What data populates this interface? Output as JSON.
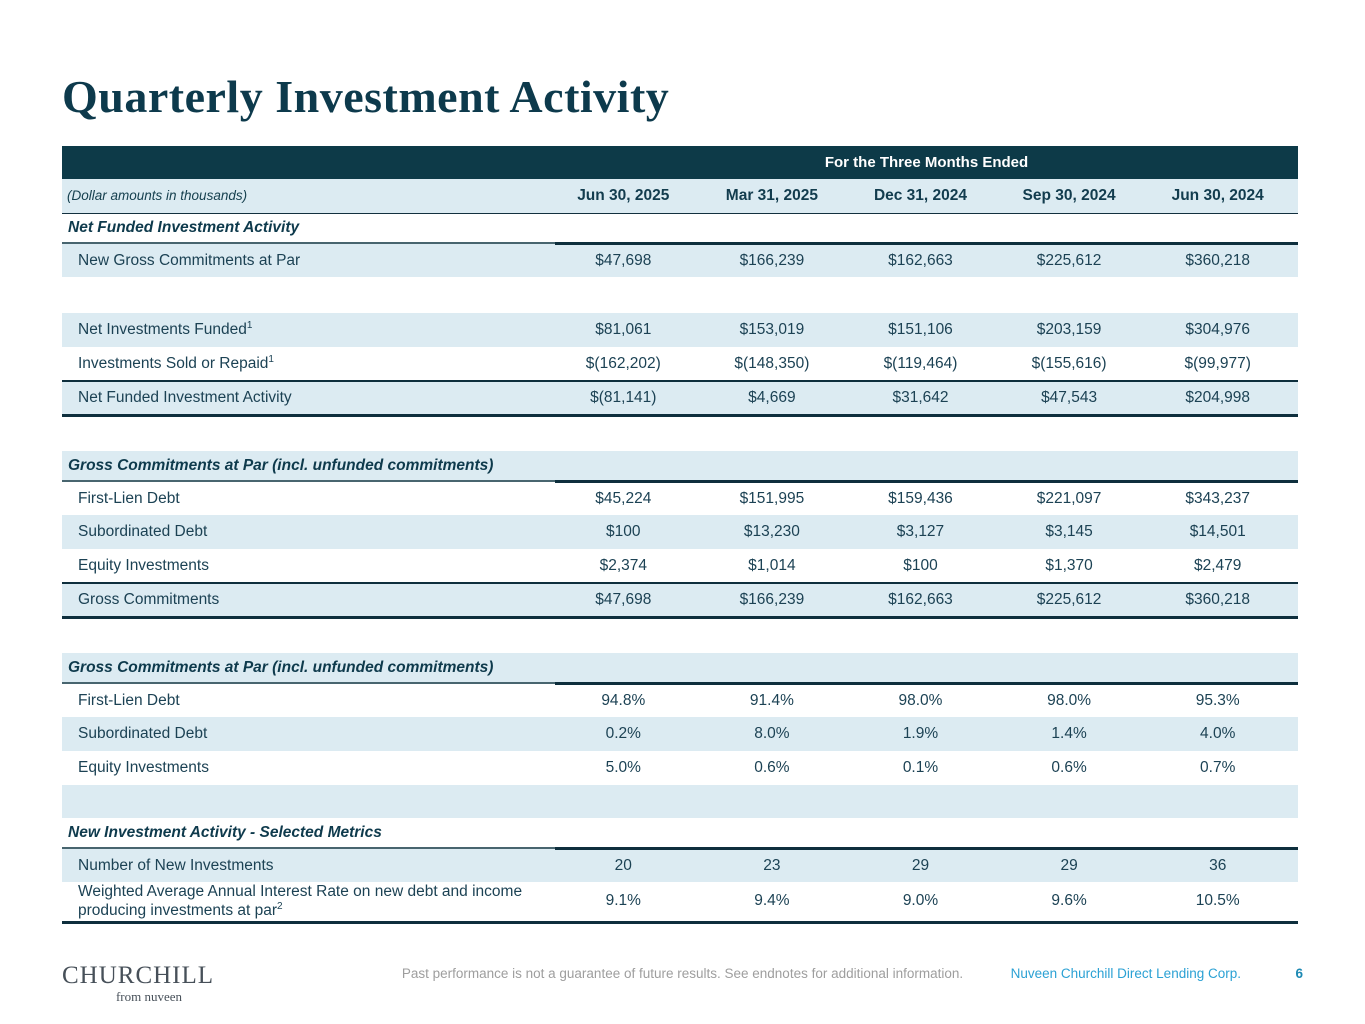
{
  "title": "Quarterly Investment Activity",
  "colors": {
    "accent_dark": "#0d3a48",
    "row_shade": "#dcebf2",
    "text_dark": "#1c4254",
    "company_link": "#2ba1d4",
    "page_number": "#1c89b3"
  },
  "table": {
    "top_header": "For the Three Months Ended",
    "label_note": "(Dollar amounts in thousands)",
    "columns": [
      "Jun 30, 2025",
      "Mar 31, 2025",
      "Dec 31, 2024",
      "Sep 30, 2024",
      "Jun 30, 2024"
    ],
    "rows": [
      {
        "type": "section",
        "label": "Net Funded Investment Activity"
      },
      {
        "type": "data",
        "shade": true,
        "label": "New Gross Commitments at Par",
        "values": [
          "$47,698",
          "$166,239",
          "$162,663",
          "$225,612",
          "$360,218"
        ]
      },
      {
        "type": "gap"
      },
      {
        "type": "data",
        "shade": true,
        "label": "Net Investments Funded",
        "sup": "1",
        "values": [
          "$81,061",
          "$153,019",
          "$151,106",
          "$203,159",
          "$304,976"
        ]
      },
      {
        "type": "data",
        "shade": false,
        "label": "Investments Sold or Repaid",
        "sup": "1",
        "values": [
          "$(162,202)",
          "$(148,350)",
          "$(119,464)",
          "$(155,616)",
          "$(99,977)"
        ]
      },
      {
        "type": "total",
        "label": "Net Funded Investment Activity",
        "values": [
          "$(81,141)",
          "$4,669",
          "$31,642",
          "$47,543",
          "$204,998"
        ]
      },
      {
        "type": "gap"
      },
      {
        "type": "section",
        "shade": true,
        "label": "Gross Commitments at Par (incl. unfunded commitments)"
      },
      {
        "type": "data",
        "shade": false,
        "label": "First-Lien Debt",
        "values": [
          "$45,224",
          "$151,995",
          "$159,436",
          "$221,097",
          "$343,237"
        ]
      },
      {
        "type": "data",
        "shade": true,
        "label": "Subordinated Debt",
        "values": [
          "$100",
          "$13,230",
          "$3,127",
          "$3,145",
          "$14,501"
        ]
      },
      {
        "type": "data",
        "shade": false,
        "label": "Equity Investments",
        "values": [
          "$2,374",
          "$1,014",
          "$100",
          "$1,370",
          "$2,479"
        ]
      },
      {
        "type": "total",
        "label": "Gross Commitments",
        "values": [
          "$47,698",
          "$166,239",
          "$162,663",
          "$225,612",
          "$360,218"
        ]
      },
      {
        "type": "gap"
      },
      {
        "type": "section",
        "shade": true,
        "label": "Gross Commitments at Par (incl. unfunded commitments)"
      },
      {
        "type": "data",
        "shade": false,
        "label": "First-Lien Debt",
        "values": [
          "94.8%",
          "91.4%",
          "98.0%",
          "98.0%",
          "95.3%"
        ]
      },
      {
        "type": "data",
        "shade": true,
        "label": "Subordinated Debt",
        "values": [
          "0.2%",
          "8.0%",
          "1.9%",
          "1.4%",
          "4.0%"
        ]
      },
      {
        "type": "data",
        "shade": false,
        "label": "Equity Investments",
        "values": [
          "5.0%",
          "0.6%",
          "0.1%",
          "0.6%",
          "0.7%"
        ]
      },
      {
        "type": "gap",
        "shade": true
      },
      {
        "type": "section",
        "label": "New Investment Activity - Selected Metrics"
      },
      {
        "type": "data",
        "shade": true,
        "label": "Number of New Investments",
        "values": [
          "20",
          "23",
          "29",
          "29",
          "36"
        ]
      },
      {
        "type": "data",
        "shade": false,
        "last": true,
        "label": "Weighted Average Annual Interest Rate on new debt and income producing investments at par",
        "sup": "2",
        "values": [
          "9.1%",
          "9.4%",
          "9.0%",
          "9.6%",
          "10.5%"
        ]
      }
    ]
  },
  "footer": {
    "logo_main": "CHURCHILL",
    "logo_sub": "from nuveen",
    "disclaimer": "Past performance is not a guarantee of future results. See endnotes for additional information.",
    "company": "Nuveen Churchill Direct Lending Corp.",
    "page": "6"
  }
}
